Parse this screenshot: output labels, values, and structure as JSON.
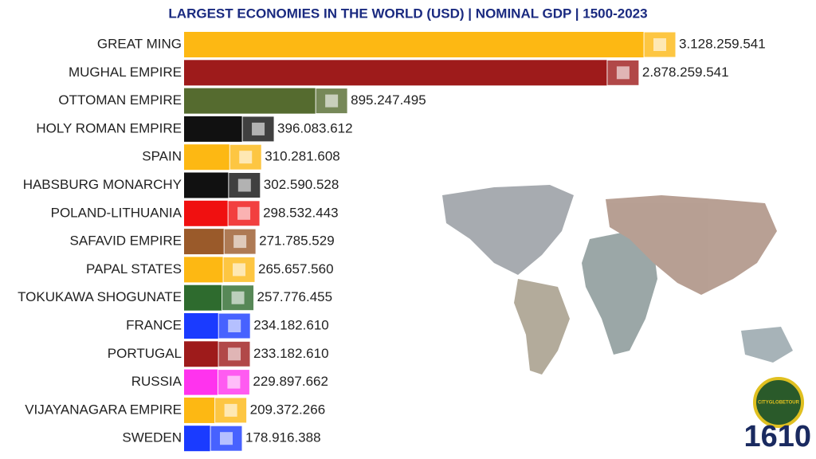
{
  "chart_data": {
    "type": "bar",
    "orientation": "horizontal",
    "title": "LARGEST ECONOMIES IN THE WORLD (USD) | NOMINAL GDP | 1500-2023",
    "categories": [
      "GREAT MING",
      "MUGHAL EMPIRE",
      "OTTOMAN EMPIRE",
      "HOLY ROMAN EMPIRE",
      "SPAIN",
      "HABSBURG MONARCHY",
      "POLAND-LITHUANIA",
      "SAFAVID EMPIRE",
      "PAPAL STATES",
      "TOKUKAWA SHOGUNATE",
      "FRANCE",
      "PORTUGAL",
      "RUSSIA",
      "VIJAYANAGARA EMPIRE",
      "SWEDEN"
    ],
    "values": [
      3128259541,
      2878259541,
      895247495,
      396083612,
      310281608,
      302590528,
      298532443,
      271785529,
      265657560,
      257776455,
      234182610,
      233182610,
      229897662,
      209372266,
      178916388
    ],
    "value_labels": [
      "3.128.259.541",
      "2.878.259.541",
      "895.247.495",
      "396.083.612",
      "310.281.608",
      "302.590.528",
      "298.532.443",
      "271.785.529",
      "265.657.560",
      "257.776.455",
      "234.182.610",
      "233.182.610",
      "229.897.662",
      "209.372.266",
      "178.916.388"
    ],
    "colors": [
      "#fdb813",
      "#9e1b1b",
      "#556b2f",
      "#111111",
      "#fdb813",
      "#111111",
      "#f01010",
      "#9a5a2a",
      "#fdb813",
      "#2e6b2e",
      "#1a3bff",
      "#9e1b1b",
      "#ff33ee",
      "#fdb813",
      "#1a3bff"
    ],
    "year": "1610",
    "logo": "CITYGLOBETOUR"
  }
}
